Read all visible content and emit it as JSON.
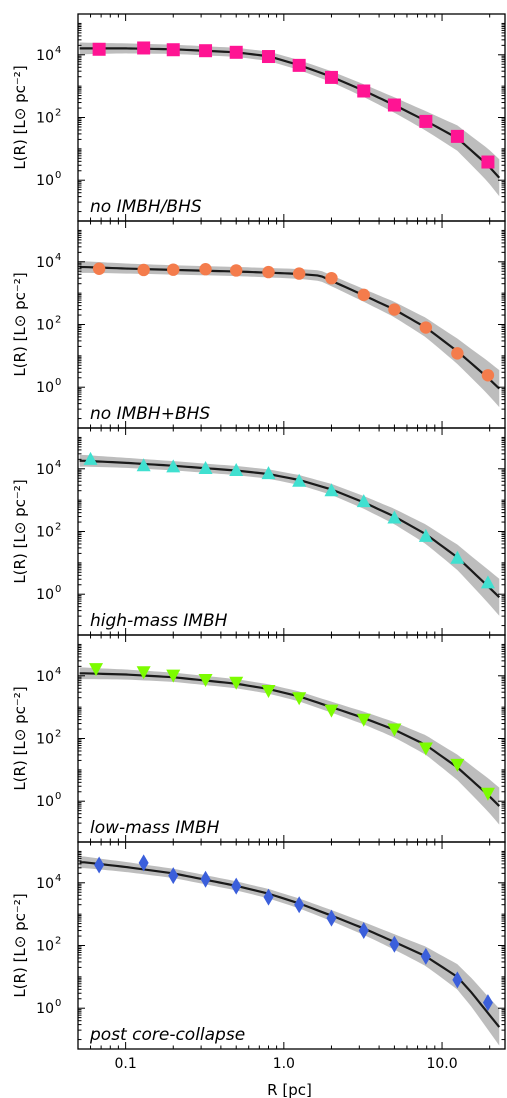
{
  "figure": {
    "xlabel": "R [pc]",
    "ylabel": "L(R) [L⊙ pc⁻²]",
    "xscale": "log",
    "yscale": "log",
    "xlim": [
      0.05,
      25
    ],
    "ylim": [
      0.05,
      200000
    ],
    "x_ticks": [
      0.1,
      1.0,
      10.0
    ],
    "x_tick_labels": [
      "0.1",
      "1.0",
      "10.0"
    ],
    "y_ticks": [
      1,
      100,
      10000
    ],
    "y_tick_labels": [
      {
        "base": "10",
        "exp": "0"
      },
      {
        "base": "10",
        "exp": "2"
      },
      {
        "base": "10",
        "exp": "4"
      }
    ],
    "model_line_color": "#1a1a1a",
    "band_color": "#bdbdbd"
  },
  "chart_data": [
    {
      "type": "scatter",
      "panel_label": "no IMBH/BHS",
      "marker": "square",
      "color": "#ff1493",
      "x": [
        0.068,
        0.13,
        0.2,
        0.32,
        0.5,
        0.8,
        1.25,
        2.0,
        3.2,
        5.0,
        7.9,
        12.5,
        19.5
      ],
      "y": [
        15000,
        16500,
        14500,
        13500,
        12000,
        8800,
        4600,
        1900,
        700,
        250,
        75,
        25,
        3.8
      ],
      "model": {
        "x": [
          0.055,
          0.1,
          0.2,
          0.5,
          0.8,
          1.25,
          2.0,
          3.2,
          5.0,
          7.9,
          12.5,
          19.5,
          23.0
        ],
        "y": [
          16000,
          16000,
          15000,
          12000,
          9000,
          4700,
          2000,
          720,
          250,
          78,
          22,
          3.0,
          1.2
        ]
      }
    },
    {
      "type": "scatter",
      "panel_label": "no IMBH+BHS",
      "marker": "circle",
      "color": "#f47c4c",
      "x": [
        0.068,
        0.13,
        0.2,
        0.32,
        0.5,
        0.8,
        1.25,
        2.0,
        3.2,
        5.0,
        7.9,
        12.5,
        19.5
      ],
      "y": [
        6000,
        5500,
        5600,
        5800,
        5300,
        4700,
        4200,
        3000,
        880,
        300,
        80,
        12,
        2.4
      ],
      "model": {
        "x": [
          0.055,
          0.1,
          0.2,
          0.5,
          0.8,
          1.25,
          1.7,
          2.2,
          3.2,
          5.0,
          7.9,
          12.5,
          19.5,
          23.0
        ],
        "y": [
          6800,
          6100,
          5500,
          4900,
          4500,
          4100,
          3600,
          2000,
          850,
          300,
          80,
          14,
          2.0,
          0.9
        ]
      }
    },
    {
      "type": "scatter",
      "panel_label": "high-mass IMBH",
      "marker": "triangle-up",
      "color": "#40e0d0",
      "x": [
        0.06,
        0.13,
        0.2,
        0.32,
        0.5,
        0.8,
        1.25,
        2.0,
        3.2,
        5.0,
        7.9,
        12.5,
        19.5
      ],
      "y": [
        20000,
        12500,
        11500,
        10200,
        8800,
        7000,
        4000,
        2000,
        900,
        270,
        70,
        14,
        2.3
      ],
      "model": {
        "x": [
          0.055,
          0.1,
          0.2,
          0.5,
          0.8,
          1.25,
          2.0,
          3.2,
          5.0,
          7.9,
          12.5,
          19.5,
          23.0
        ],
        "y": [
          18000,
          15500,
          12500,
          8800,
          6800,
          4400,
          2200,
          850,
          300,
          82,
          15,
          1.8,
          0.8
        ]
      }
    },
    {
      "type": "scatter",
      "panel_label": "low-mass IMBH",
      "marker": "triangle-down",
      "color": "#7cfc00",
      "x": [
        0.065,
        0.13,
        0.2,
        0.32,
        0.5,
        0.8,
        1.25,
        2.0,
        3.2,
        5.0,
        7.9,
        12.5,
        19.5
      ],
      "y": [
        17000,
        13500,
        10500,
        7600,
        6200,
        3400,
        2000,
        800,
        410,
        200,
        50,
        15,
        1.8
      ],
      "model": {
        "x": [
          0.055,
          0.1,
          0.2,
          0.5,
          0.8,
          1.25,
          2.0,
          3.2,
          5.0,
          7.9,
          12.5,
          19.5,
          23.0
        ],
        "y": [
          12000,
          11000,
          9000,
          5600,
          3800,
          2200,
          1000,
          450,
          190,
          62,
          12,
          1.6,
          0.7
        ]
      }
    },
    {
      "type": "scatter",
      "panel_label": "post core-collapse",
      "marker": "diamond",
      "color": "#3b5fdb",
      "x": [
        0.068,
        0.13,
        0.2,
        0.32,
        0.5,
        0.8,
        1.25,
        2.0,
        3.2,
        5.0,
        7.9,
        12.5,
        19.5
      ],
      "y": [
        37000,
        43000,
        17000,
        13000,
        7800,
        3500,
        2000,
        750,
        300,
        110,
        45,
        8,
        1.5
      ],
      "model": {
        "x": [
          0.055,
          0.1,
          0.2,
          0.5,
          0.8,
          1.25,
          2.0,
          3.2,
          5.0,
          7.9,
          12.5,
          15.5,
          19.5,
          23.0
        ],
        "y": [
          45000,
          32000,
          20000,
          8000,
          4500,
          2200,
          900,
          350,
          130,
          45,
          10,
          3.0,
          0.7,
          0.25
        ]
      }
    }
  ]
}
